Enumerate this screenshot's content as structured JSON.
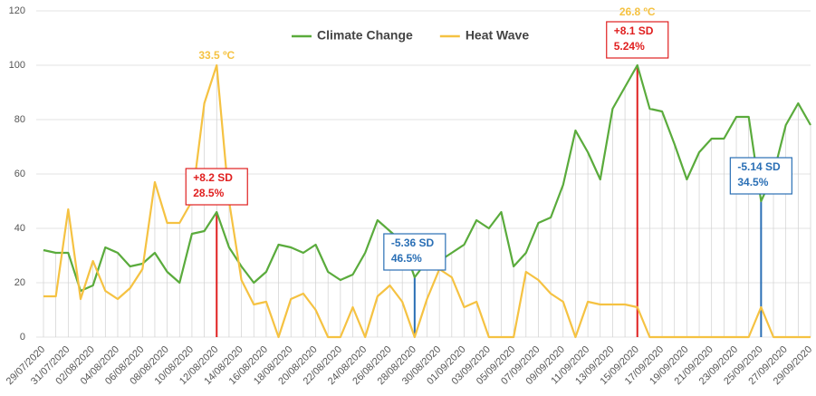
{
  "chart_data": {
    "type": "line",
    "categories": [
      "29/07/2020",
      null,
      "31/07/2020",
      null,
      "02/08/2020",
      null,
      "04/08/2020",
      null,
      "06/08/2020",
      null,
      "08/08/2020",
      null,
      "10/08/2020",
      null,
      "12/08/2020",
      null,
      "14/08/2020",
      null,
      "16/08/2020",
      null,
      "18/08/2020",
      null,
      "20/08/2020",
      null,
      "22/08/2020",
      null,
      "24/08/2020",
      null,
      "26/08/2020",
      null,
      "28/08/2020",
      null,
      "30/08/2020",
      null,
      "01/09/2020",
      null,
      "03/09/2020",
      null,
      "05/09/2020",
      null,
      "07/09/2020",
      null,
      "09/09/2020",
      null,
      "11/09/2020",
      null,
      "13/09/2020",
      null,
      "15/09/2020",
      null,
      "17/09/2020",
      null,
      "19/09/2020",
      null,
      "21/09/2020",
      null,
      "23/09/2020",
      null,
      "25/09/2020",
      null,
      "27/09/2020",
      null,
      "29/09/2020"
    ],
    "series": [
      {
        "name": "Climate Change",
        "color": "#5aab3c",
        "values": [
          32,
          31,
          31,
          17,
          19,
          33,
          31,
          26,
          27,
          31,
          24,
          20,
          38,
          39,
          46,
          33,
          26,
          20,
          24,
          34,
          33,
          31,
          34,
          24,
          21,
          23,
          31,
          43,
          39,
          35,
          22,
          28,
          28,
          31,
          34,
          43,
          40,
          46,
          26,
          31,
          42,
          44,
          56,
          76,
          68,
          58,
          84,
          92,
          100,
          84,
          83,
          71,
          58,
          68,
          73,
          73,
          81,
          81,
          50,
          60,
          78,
          86,
          78
        ]
      },
      {
        "name": "Heat Wave",
        "color": "#f5c242",
        "values": [
          15,
          15,
          47,
          14,
          28,
          17,
          14,
          18,
          25,
          57,
          42,
          42,
          50,
          86,
          100,
          50,
          21,
          12,
          13,
          0,
          14,
          16,
          10,
          0,
          0,
          11,
          0,
          15,
          19,
          13,
          0,
          14,
          25,
          22,
          11,
          13,
          0,
          0,
          0,
          24,
          21,
          16,
          13,
          0,
          13,
          12,
          12,
          12,
          11,
          0,
          0,
          0,
          0,
          0,
          0,
          0,
          0,
          0,
          11,
          0,
          0,
          0,
          0
        ]
      }
    ],
    "ylim": [
      0,
      120
    ],
    "yticks": [
      0,
      20,
      40,
      60,
      80,
      100,
      120
    ],
    "grid": true,
    "legend": "top",
    "annotations": [
      {
        "category": "12/08/2020",
        "lines": [
          "+8.2 SD",
          "28.5%"
        ],
        "color": "#e02020",
        "temperature": "33.5 ºC"
      },
      {
        "category": "28/08/2020",
        "lines": [
          "-5.36 SD",
          "46.5%"
        ],
        "color": "#2a6fb5"
      },
      {
        "category": "15/09/2020",
        "lines": [
          "+8.1 SD",
          "5.24%"
        ],
        "color": "#e02020",
        "temperature": "26.8 ºC"
      },
      {
        "category": "25/09/2020",
        "lines": [
          "-5.14 SD",
          "34.5%"
        ],
        "color": "#2a6fb5"
      }
    ]
  }
}
